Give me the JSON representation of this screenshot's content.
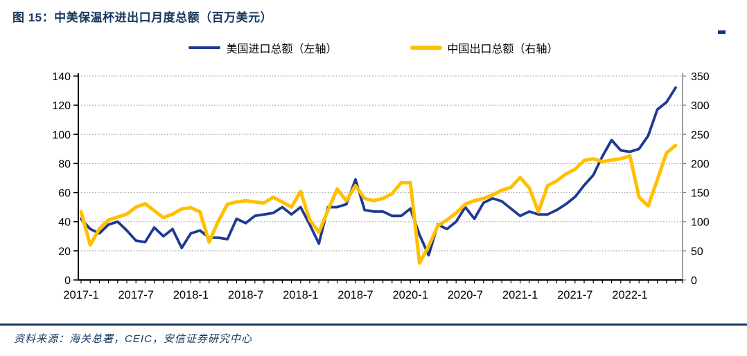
{
  "figure": {
    "title": "图 15：中美保温杯进出口月度总额（百万美元）",
    "source_line": "资料来源：海关总署，CEIC，安信证券研究中心"
  },
  "legend": {
    "us_imports_label": "美国进口总额（左轴）",
    "cn_exports_label": "中国出口总额（右轴）"
  },
  "colors": {
    "navy_text": "#16365D",
    "us_imports_line": "#1F3A93",
    "cn_exports_line": "#FFC000",
    "axis_black": "#000000",
    "right_axis_gray": "#808080",
    "gridline_gray": "#A9A9A9"
  },
  "chart_data": {
    "type": "line",
    "title": "中美保温杯进出口月度总额（百万美元）",
    "x_unit": "month",
    "x_start": "2017-01",
    "x_end": "2022-06",
    "x_tick_labels": [
      "2017-1",
      "2017-7",
      "2018-1",
      "2018-7",
      "2018-1",
      "2018-7",
      "2020-1",
      "2020-7",
      "2021-1",
      "2021-7",
      "2022-1"
    ],
    "x_tick_label_note": "labels as printed in the original figure (2019 mislabeled as 2018)",
    "left_axis": {
      "min": 0,
      "max": 140,
      "step": 20,
      "ticks": [
        0,
        20,
        40,
        60,
        80,
        100,
        120,
        140
      ]
    },
    "right_axis": {
      "min": 0,
      "max": 350,
      "step": 50,
      "ticks": [
        0,
        50,
        100,
        150,
        200,
        250,
        300,
        350
      ]
    },
    "grid": "dotted-horizontal",
    "legend_position": "top-center",
    "series": [
      {
        "name": "美国进口总额（左轴）",
        "axis": "left",
        "color": "#1F3A93",
        "values": [
          42,
          35,
          32,
          38,
          40,
          34,
          27,
          26,
          36,
          30,
          35,
          22,
          32,
          34,
          29,
          29,
          28,
          42,
          39,
          44,
          45,
          46,
          50,
          45,
          50,
          38,
          25,
          50,
          50,
          52,
          69,
          48,
          47,
          47,
          44,
          44,
          49,
          31,
          17,
          38,
          35,
          40,
          50,
          42,
          53,
          56,
          54,
          49,
          44,
          47,
          45,
          45,
          48,
          52,
          57,
          65,
          72,
          85,
          96,
          89,
          88,
          90,
          99,
          117,
          122,
          132
        ]
      },
      {
        "name": "中国出口总额（右轴）",
        "axis": "right",
        "color": "#FFC000",
        "values": [
          117,
          60,
          88,
          103,
          108,
          113,
          125,
          131,
          119,
          107,
          113,
          122,
          124,
          117,
          65,
          101,
          130,
          134,
          136,
          134,
          132,
          142,
          134,
          125,
          152,
          103,
          82,
          120,
          156,
          136,
          162,
          140,
          136,
          140,
          148,
          167,
          167,
          29,
          58,
          93,
          103,
          115,
          130,
          136,
          140,
          146,
          154,
          159,
          176,
          158,
          117,
          162,
          170,
          182,
          190,
          205,
          208,
          203,
          206,
          208,
          213,
          142,
          127,
          172,
          218,
          231
        ]
      }
    ]
  }
}
